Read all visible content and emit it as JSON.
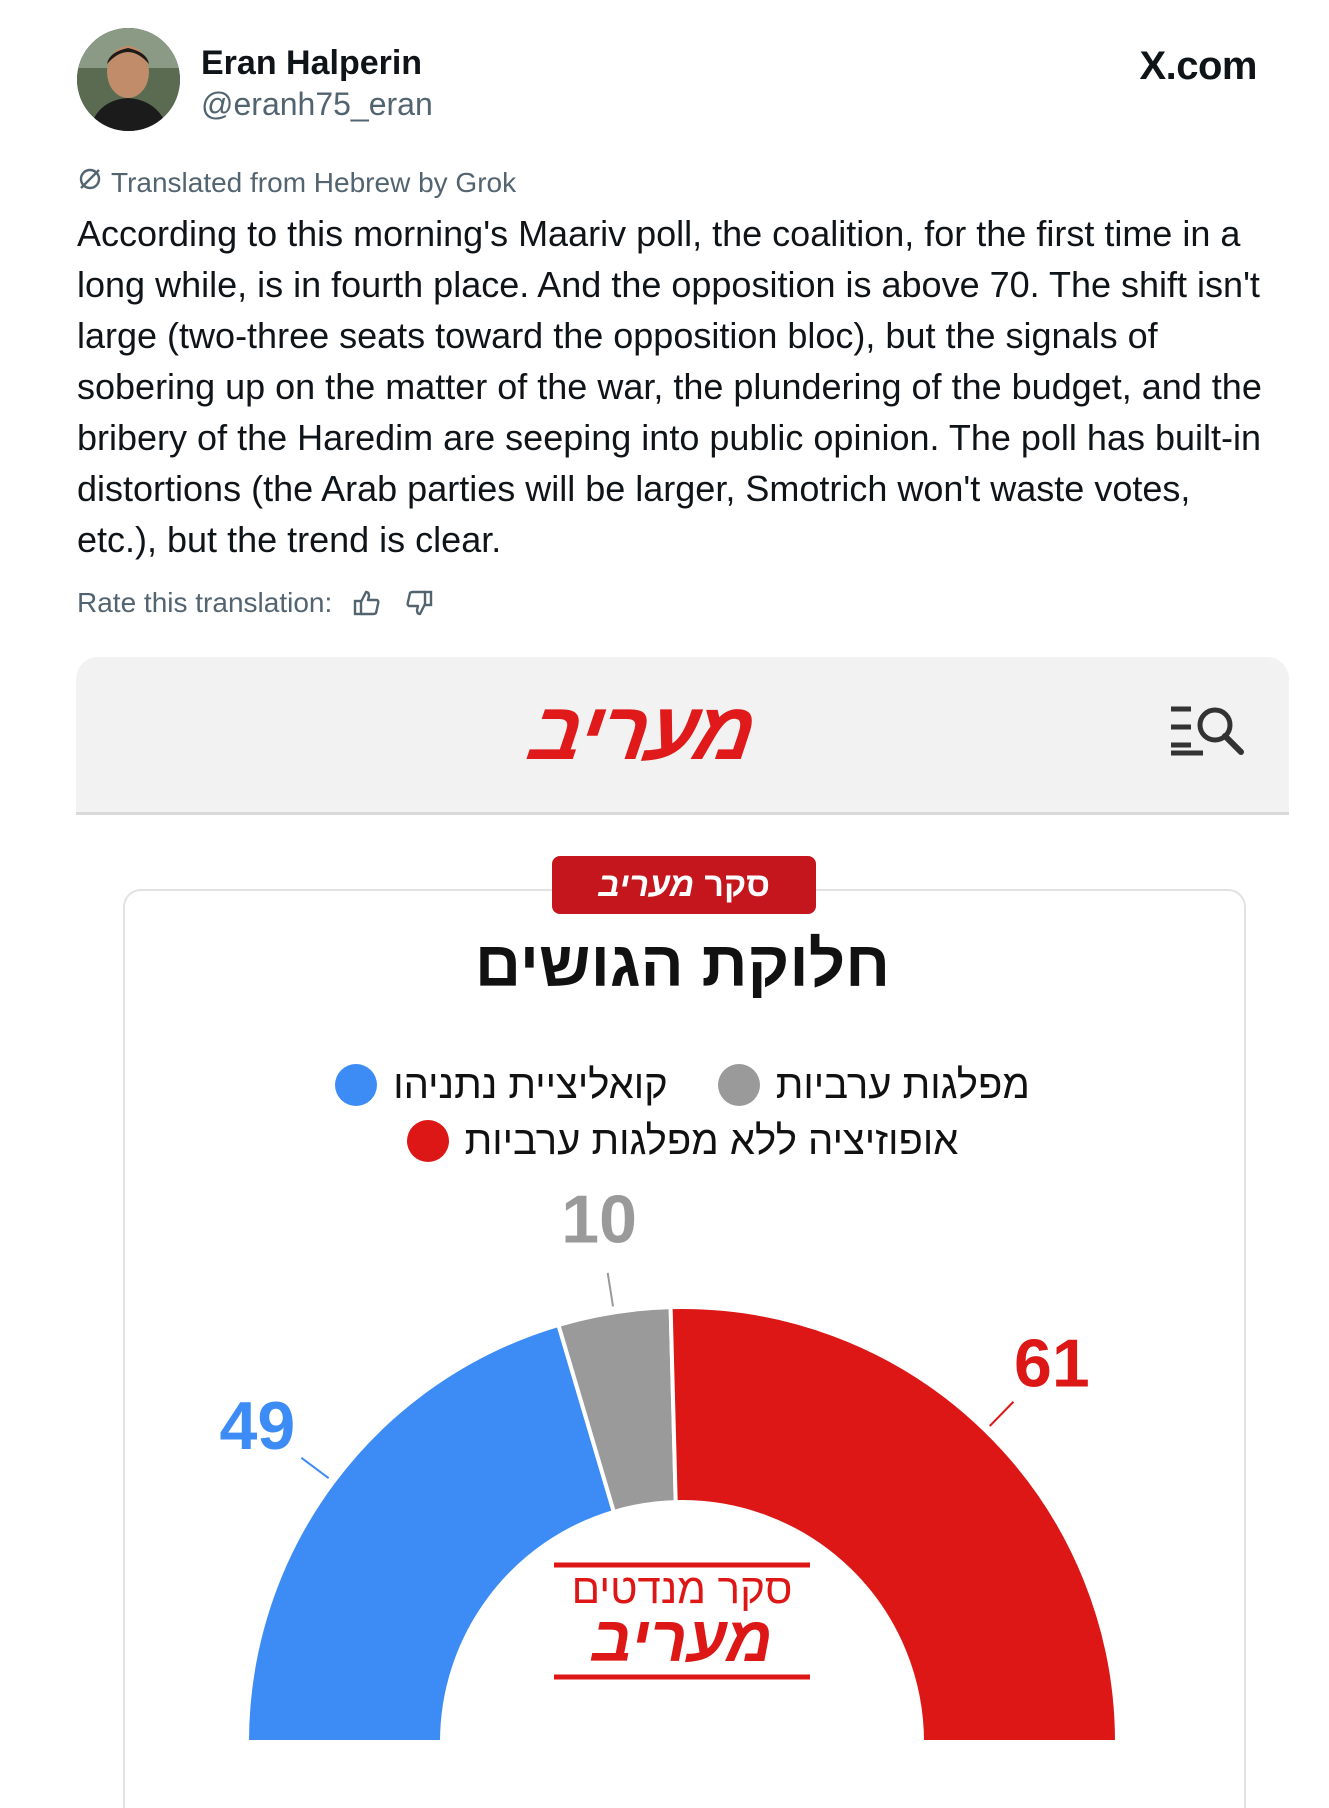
{
  "tweet": {
    "author_name": "Eran Halperin",
    "author_handle": "@eranh75_eran",
    "site": "X.com",
    "translated_label": "Translated from Hebrew by Grok",
    "text": "According to this morning's Maariv poll, the coalition, for the first time in a long while, is in fourth place. And the opposition is above 70. The shift isn't large (two-three seats toward the opposition bloc), but the signals of sobering up on the matter of the war, the plundering of the budget, and the bribery of the Haredim are seeping into public opinion. The poll has built-in distortions (the Arab parties will be larger, Smotrich won't waste votes, etc.), but the trend is clear.",
    "rate_label": "Rate this translation:",
    "icons": [
      "translate-icon",
      "thumbs-up-icon",
      "thumbs-down-icon"
    ]
  },
  "maariv": {
    "logo": "מעריב",
    "poll_badge_prefix": "סקר",
    "poll_badge_brand": "מעריב",
    "stamp_line1": "סקר מנדטים",
    "stamp_line2": "מעריב",
    "icons": [
      "menu-search-icon"
    ]
  },
  "chart_data": {
    "type": "pie",
    "style": "semi-donut",
    "title": "חלוקת הגושים",
    "legend": [
      {
        "name": "קואליציית נתניהו",
        "color": "#3d8bf5"
      },
      {
        "name": "מפלגות ערביות",
        "color": "#9a9a9a"
      },
      {
        "name": "אופוזיציה ללא מפלגות ערביות",
        "color": "#dd1616"
      }
    ],
    "series": [
      {
        "name": "קואליציית נתניהו",
        "value": 49,
        "color": "#3d8bf5"
      },
      {
        "name": "מפלגות ערביות",
        "value": 10,
        "color": "#9a9a9a"
      },
      {
        "name": "אופוזיציה ללא מפלגות ערביות",
        "value": 61,
        "color": "#dd1616"
      }
    ],
    "total": 120
  }
}
